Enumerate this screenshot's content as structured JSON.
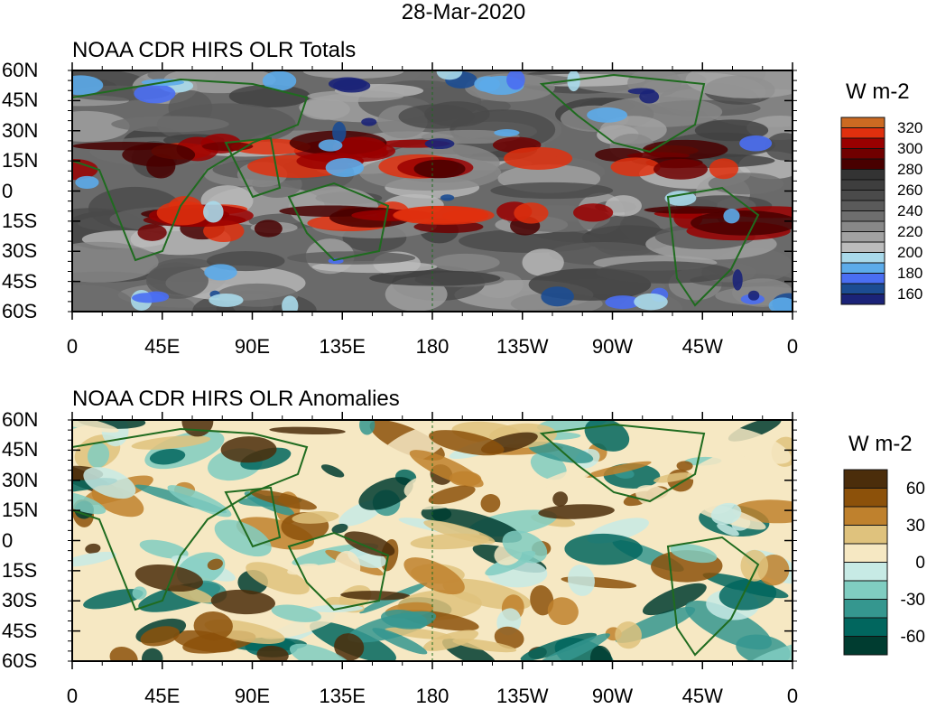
{
  "title": "28-Mar-2020",
  "chart_data": [
    {
      "type": "heatmap",
      "title": "NOAA CDR HIRS OLR Totals",
      "units": "W m-2",
      "y_ticks": [
        "60N",
        "45N",
        "30N",
        "15N",
        "0",
        "15S",
        "30S",
        "45S",
        "60S"
      ],
      "x_ticks": [
        "0",
        "45E",
        "90E",
        "135E",
        "180",
        "135W",
        "90W",
        "45W",
        "0"
      ],
      "lat_range": [
        -60,
        60
      ],
      "lon_range": [
        0,
        360
      ],
      "colorbar": {
        "levels": [
          320,
          310,
          300,
          290,
          280,
          270,
          260,
          250,
          240,
          230,
          220,
          210,
          200,
          190,
          180,
          170,
          160
        ],
        "labels": [
          "320",
          "300",
          "280",
          "260",
          "240",
          "220",
          "200",
          "180",
          "160"
        ],
        "colors": [
          "#cc6a22",
          "#e0300e",
          "#9a0000",
          "#700000",
          "#480000",
          "#333333",
          "#3e3e3e",
          "#4a4a4a",
          "#5a5a5a",
          "#6e6e6e",
          "#888888",
          "#a2a2a2",
          "#bcbcbc",
          "#a9d9ea",
          "#5cabea",
          "#4a6ef2",
          "#1c4c92",
          "#1b2378"
        ]
      }
    },
    {
      "type": "heatmap",
      "title": "NOAA CDR HIRS OLR Anomalies",
      "units": "W m-2",
      "y_ticks": [
        "60N",
        "45N",
        "30N",
        "15N",
        "0",
        "15S",
        "30S",
        "45S",
        "60S"
      ],
      "x_ticks": [
        "0",
        "45E",
        "90E",
        "135E",
        "180",
        "135W",
        "90W",
        "45W",
        "0"
      ],
      "lat_range": [
        -60,
        60
      ],
      "lon_range": [
        0,
        360
      ],
      "colorbar": {
        "levels": [
          60,
          45,
          30,
          15,
          0,
          -15,
          -30,
          -45,
          -60
        ],
        "labels": [
          "60",
          "30",
          "0",
          "-30",
          "-60"
        ],
        "colors": [
          "#4b2d0b",
          "#8c510a",
          "#bf812d",
          "#dfc27d",
          "#f6e8c3",
          "#c7eae5",
          "#80cdc1",
          "#35978f",
          "#01665e",
          "#003c30"
        ]
      }
    }
  ]
}
